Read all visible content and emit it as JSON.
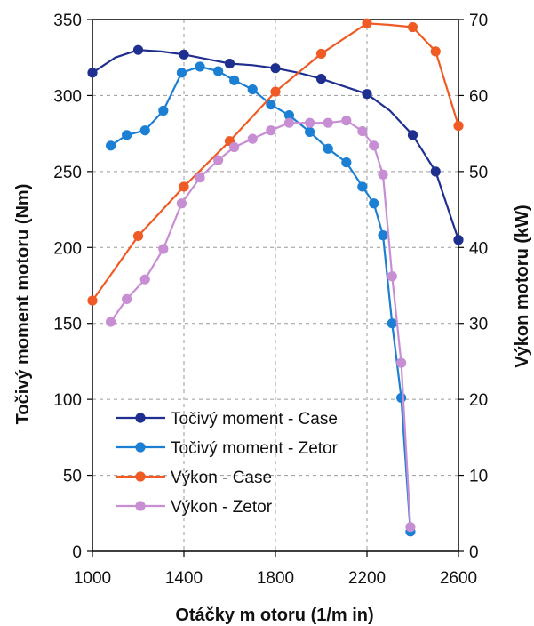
{
  "chart_data": {
    "type": "line",
    "xlabel": "Otáčky m otoru (1/m in)",
    "ylabel_left": "Točivý moment motoru (Nm)",
    "ylabel_right": "Výkon motoru (kW)",
    "xlim": [
      1000,
      2600
    ],
    "ylim_left": [
      0,
      350
    ],
    "ylim_right": [
      0,
      70
    ],
    "xticks": [
      "1000",
      "1400",
      "1800",
      "2200",
      "2600"
    ],
    "yticks_left": [
      "0",
      "50",
      "100",
      "150",
      "200",
      "250",
      "300",
      "350"
    ],
    "yticks_right": [
      "0",
      "10",
      "20",
      "30",
      "40",
      "50",
      "60",
      "70"
    ],
    "grid": true,
    "legend_position": "bottom-left-center",
    "series": [
      {
        "name": "Točivý moment - Case",
        "axis": "left",
        "color": "#1f2f8f",
        "x": [
          1000,
          1100,
          1200,
          1300,
          1400,
          1500,
          1600,
          1700,
          1800,
          1900,
          2000,
          2100,
          2200,
          2300,
          2400,
          2500,
          2600
        ],
        "y": [
          315,
          325,
          330,
          329,
          327,
          324,
          321,
          320,
          318,
          315,
          311,
          306,
          301,
          290,
          274,
          250,
          205
        ],
        "markers": [
          true,
          false,
          true,
          false,
          true,
          false,
          true,
          false,
          true,
          false,
          true,
          false,
          true,
          false,
          true,
          true,
          true
        ]
      },
      {
        "name": "Točivý moment - Zetor",
        "axis": "left",
        "color": "#1b7fd4",
        "x": [
          1080,
          1150,
          1230,
          1310,
          1390,
          1470,
          1550,
          1620,
          1700,
          1780,
          1860,
          1950,
          2030,
          2110,
          2180,
          2230,
          2270,
          2310,
          2350,
          2390
        ],
        "y": [
          267,
          274,
          277,
          290,
          315,
          319,
          316,
          310,
          304,
          294,
          287,
          276,
          265,
          256,
          240,
          229,
          208,
          150,
          101,
          13
        ]
      },
      {
        "name": "Výkon - Case",
        "axis": "right",
        "color": "#f05a24",
        "x": [
          1000,
          1200,
          1400,
          1600,
          1800,
          2000,
          2200,
          2300,
          2400,
          2500,
          2600
        ],
        "y": [
          33,
          41.5,
          48,
          54,
          60.5,
          65.5,
          69.5,
          69.3,
          69,
          65.8,
          56
        ],
        "markers": [
          true,
          true,
          true,
          true,
          true,
          true,
          true,
          false,
          true,
          true,
          true
        ]
      },
      {
        "name": "Výkon - Zetor",
        "axis": "right",
        "color": "#c88ed4",
        "x": [
          1080,
          1150,
          1230,
          1310,
          1390,
          1470,
          1550,
          1620,
          1700,
          1780,
          1860,
          1950,
          2030,
          2110,
          2180,
          2230,
          2270,
          2310,
          2350,
          2390
        ],
        "y": [
          30.2,
          33.2,
          35.8,
          39.8,
          45.8,
          49.2,
          51.5,
          53.2,
          54.3,
          55.4,
          56.4,
          56.4,
          56.4,
          56.7,
          55.3,
          53.4,
          49.6,
          36.2,
          24.8,
          3.2
        ]
      }
    ]
  }
}
